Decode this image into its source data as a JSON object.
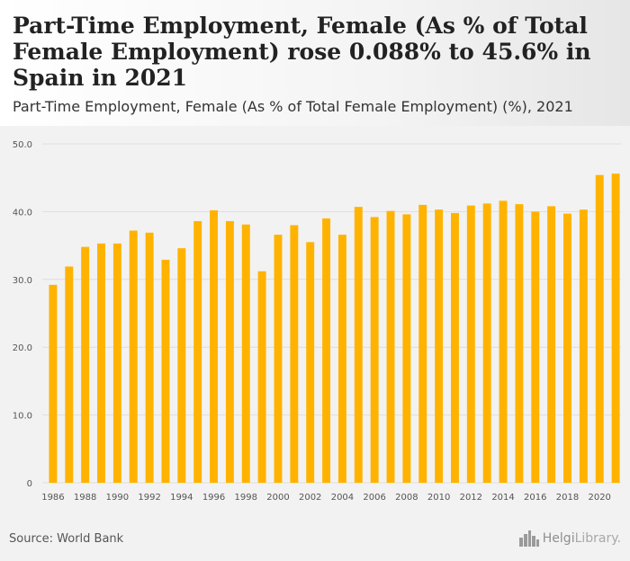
{
  "header": {
    "title": "Part-Time Employment, Female (As % of Total Female Employment) rose 0.088% to 45.6% in Spain in 2021",
    "subtitle": "Part-Time Employment, Female (As % of Total Female Employment) (%), 2021"
  },
  "footer": {
    "source": "Source: World Bank",
    "brand_part1": "Helgi",
    "brand_part2": "Library.",
    "brand_icon": "city-skyline-icon"
  },
  "colors": {
    "bar": "#FFB300",
    "grid": "#dddddd",
    "axis_text": "#555555",
    "background": "#f2f2f2"
  },
  "chart_data": {
    "type": "bar",
    "title": "",
    "xlabel": "",
    "ylabel": "",
    "ylim": [
      0,
      50
    ],
    "yticks": [
      "0",
      "10.0",
      "20.0",
      "30.0",
      "40.0",
      "50.0"
    ],
    "grid": true,
    "categories": [
      "1986",
      "1987",
      "1988",
      "1989",
      "1990",
      "1991",
      "1992",
      "1993",
      "1994",
      "1995",
      "1996",
      "1997",
      "1998",
      "1999",
      "2000",
      "2001",
      "2002",
      "2003",
      "2004",
      "2005",
      "2006",
      "2007",
      "2008",
      "2009",
      "2010",
      "2011",
      "2012",
      "2013",
      "2014",
      "2015",
      "2016",
      "2017",
      "2018",
      "2019",
      "2020",
      "2021"
    ],
    "xtick_labels": [
      "1986",
      "",
      "1988",
      "",
      "1990",
      "",
      "1992",
      "",
      "1994",
      "",
      "1996",
      "",
      "1998",
      "",
      "2000",
      "",
      "2002",
      "",
      "2004",
      "",
      "2006",
      "",
      "2008",
      "",
      "2010",
      "",
      "2012",
      "",
      "2014",
      "",
      "2016",
      "",
      "2018",
      "",
      "2020",
      ""
    ],
    "values": [
      29.2,
      31.9,
      34.8,
      35.3,
      35.3,
      37.2,
      36.9,
      32.9,
      34.6,
      38.6,
      40.2,
      38.6,
      38.1,
      31.2,
      36.6,
      38.0,
      35.5,
      39.0,
      36.6,
      40.7,
      39.2,
      40.1,
      39.6,
      41.0,
      40.3,
      39.8,
      40.9,
      41.2,
      41.6,
      41.1,
      40.0,
      40.8,
      39.7,
      40.3,
      45.4,
      45.6
    ]
  }
}
